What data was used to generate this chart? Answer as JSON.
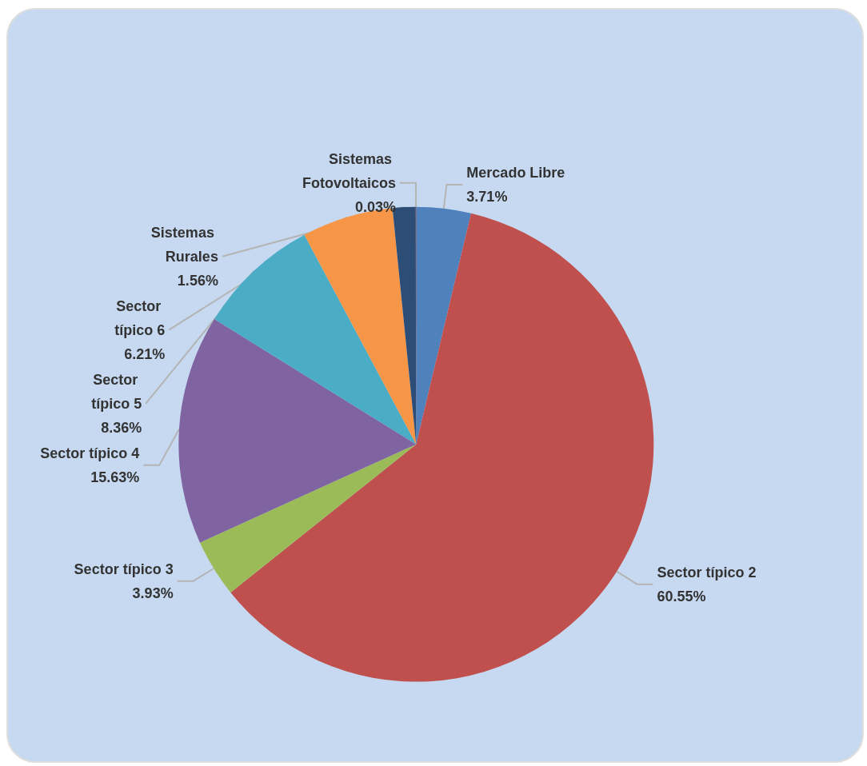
{
  "chart_data": {
    "type": "pie",
    "categories": [
      "Mercado Libre",
      "Sector típico 2",
      "Sector típico 3",
      "Sector típico 4",
      "Sector típico 5",
      "Sector típico 6",
      "Sistemas Rurales",
      "Sistemas Fotovoltaicos"
    ],
    "values": [
      3.71,
      60.55,
      3.93,
      15.63,
      8.36,
      6.21,
      1.56,
      0.03
    ],
    "value_labels": [
      "3.71%",
      "60.55%",
      "3.93%",
      "15.63%",
      "8.36%",
      "6.21%",
      "1.56%",
      "0.03%"
    ],
    "colors": [
      "#4f81bd",
      "#c0504d",
      "#9bbb59",
      "#8064a2",
      "#4bacc6",
      "#f79646",
      "#2c4d75",
      "#772c2a"
    ],
    "legend": false
  }
}
